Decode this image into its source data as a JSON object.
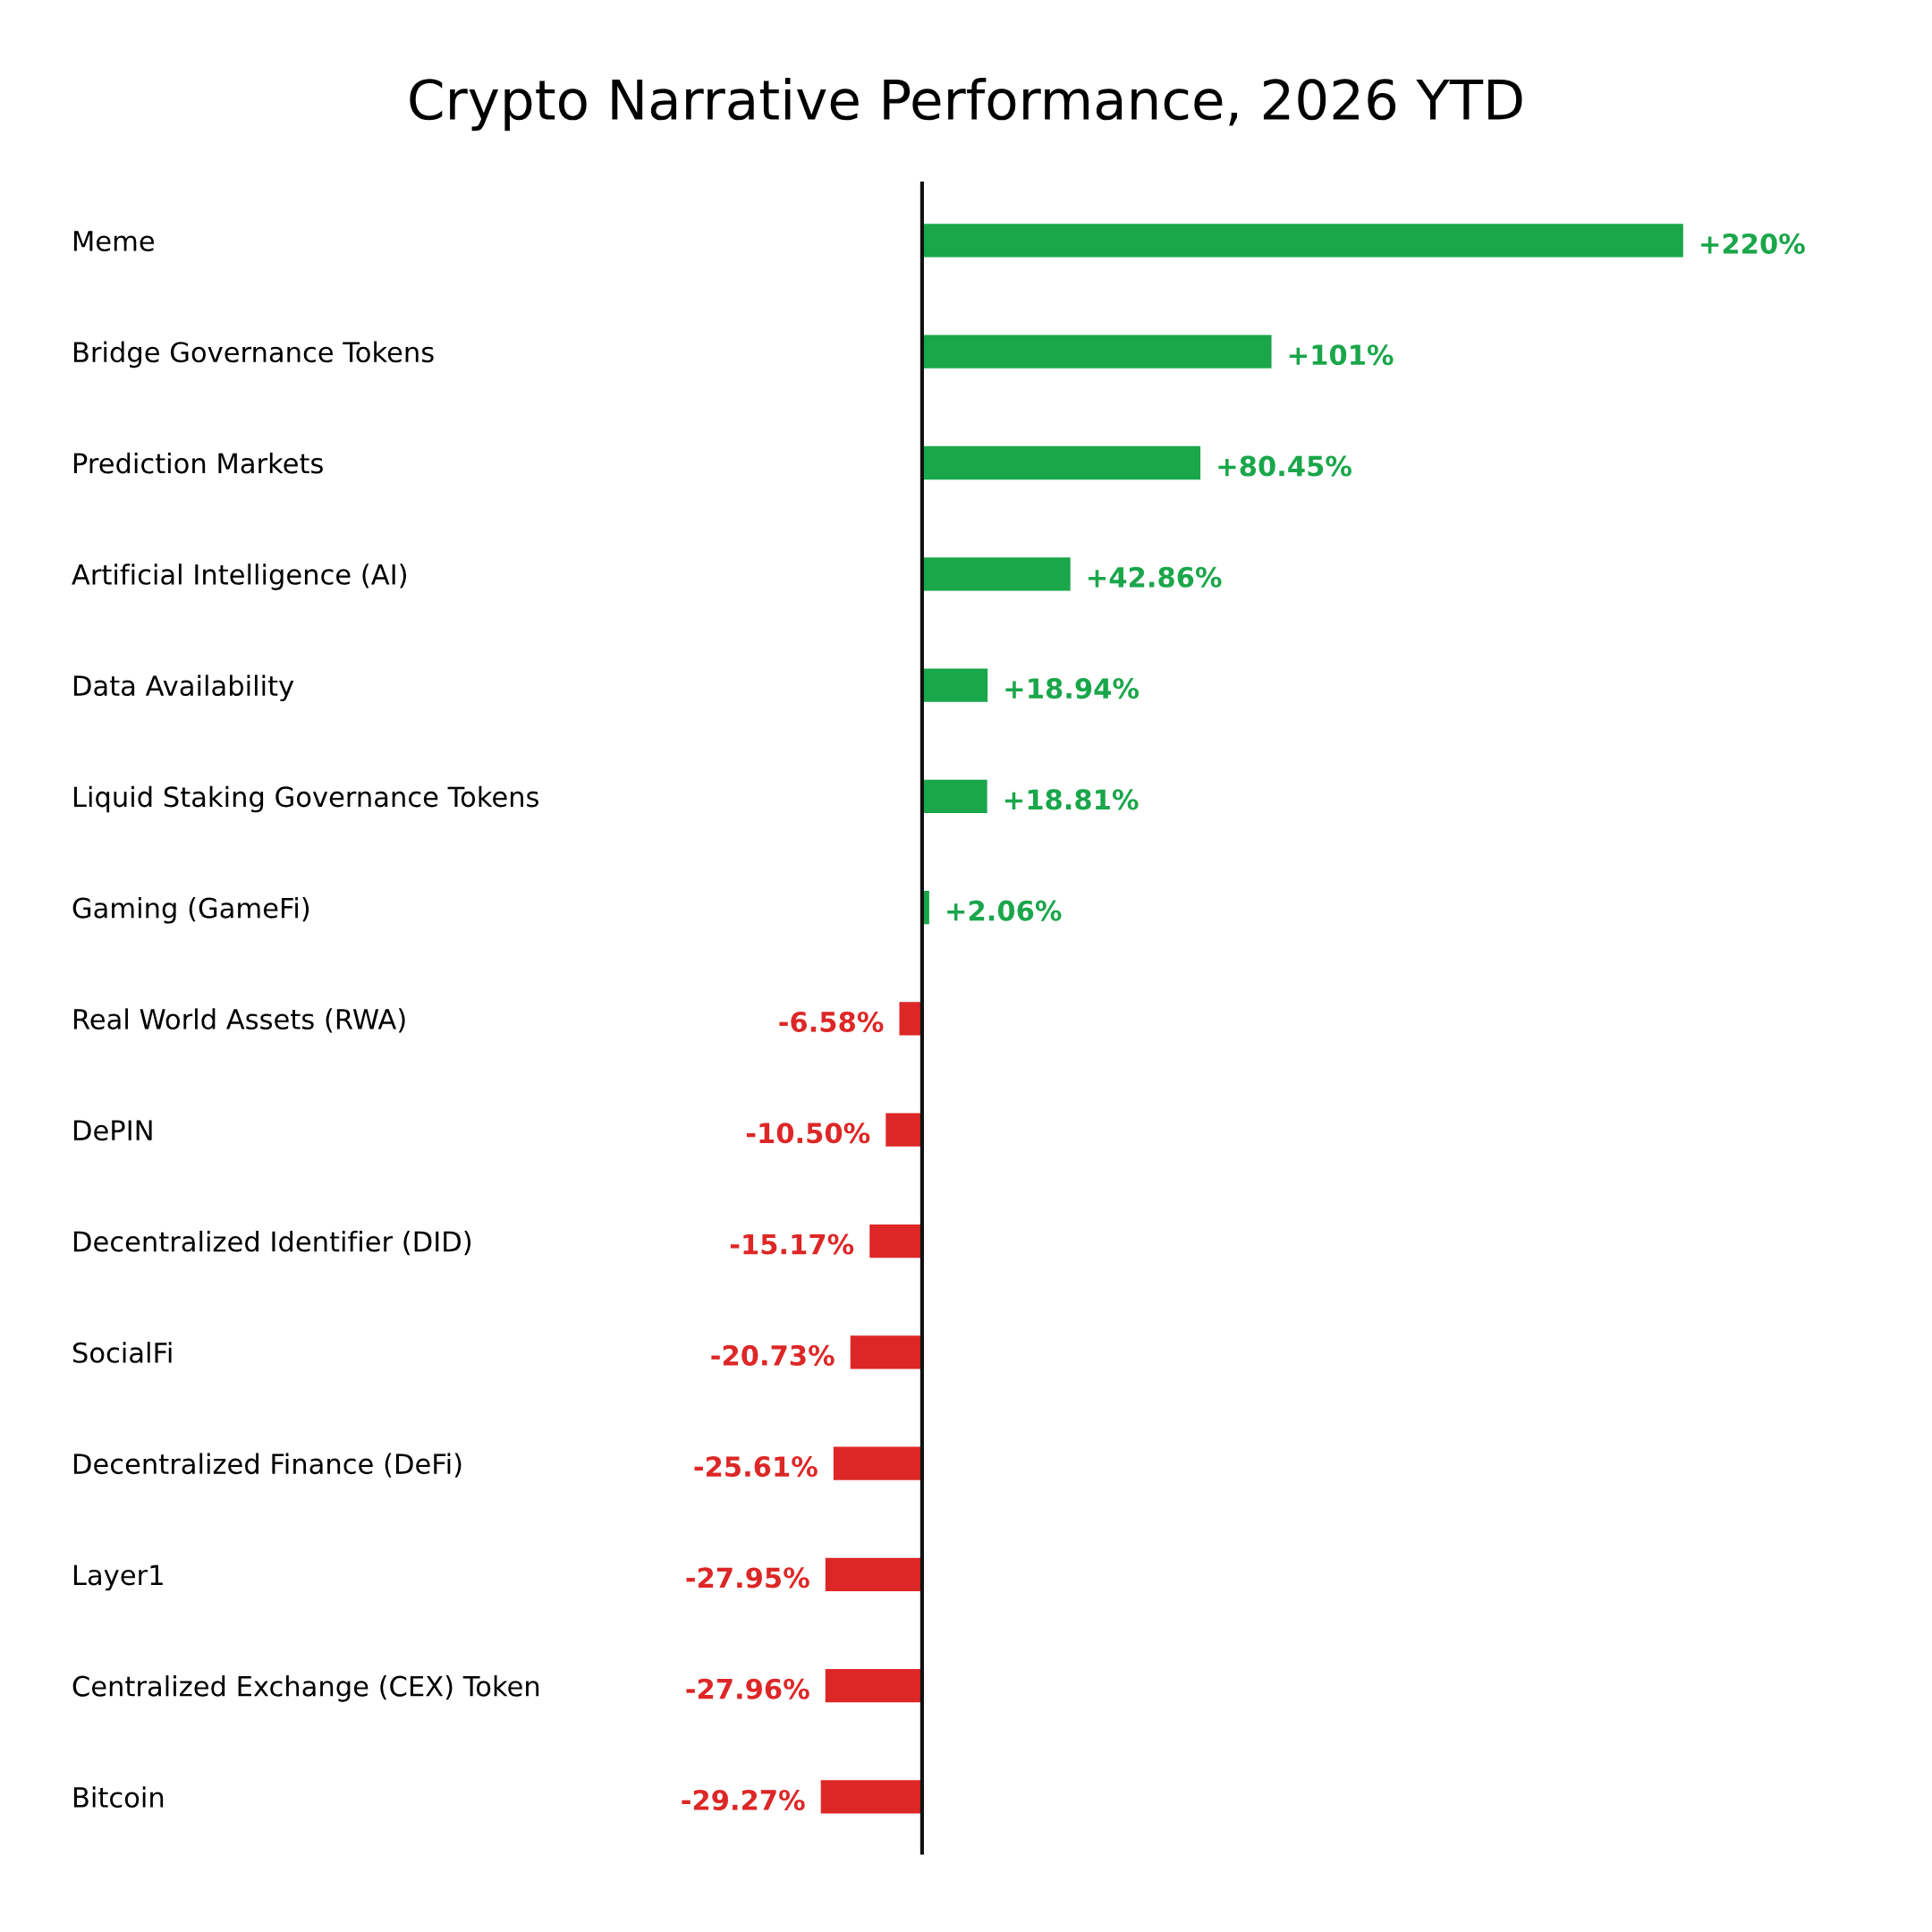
{
  "chart_data": {
    "type": "bar",
    "orientation": "horizontal",
    "title": "Crypto Narrative Performance, 2026 YTD",
    "categories": [
      "Meme",
      "Bridge Governance Tokens",
      "Prediction Markets",
      "Artificial Intelligence (AI)",
      "Data Availability",
      "Liquid Staking Governance Tokens",
      "Gaming (GameFi)",
      "Real World Assets (RWA)",
      "DePIN",
      "Decentralized Identifier (DID)",
      "SocialFi",
      "Decentralized Finance (DeFi)",
      "Layer1",
      "Centralized Exchange (CEX) Token",
      "Bitcoin"
    ],
    "values": [
      220,
      101,
      80.45,
      42.86,
      18.94,
      18.81,
      2.06,
      -6.58,
      -10.5,
      -15.17,
      -20.73,
      -25.61,
      -27.95,
      -27.96,
      -29.27
    ],
    "colors": [
      "#1aa64a",
      "#1aa64a",
      "#1aa64a",
      "#1aa64a",
      "#1aa64a",
      "#1aa64a",
      "#1aa64a",
      "#dd2727",
      "#dd2727",
      "#dd2727",
      "#dd2727",
      "#dd2727",
      "#dd2727",
      "#dd2727",
      "#dd2727"
    ],
    "value_labels": [
      "+220%",
      "+101%",
      "+80.45%",
      "+42.86%",
      "+18.94%",
      "+18.81%",
      "+2.06%",
      "-6.58%",
      "-10.50%",
      "-15.17%",
      "-20.73%",
      "-25.61%",
      "-27.95%",
      "-27.96%",
      "-29.27%"
    ],
    "grid": false,
    "legend": false
  }
}
